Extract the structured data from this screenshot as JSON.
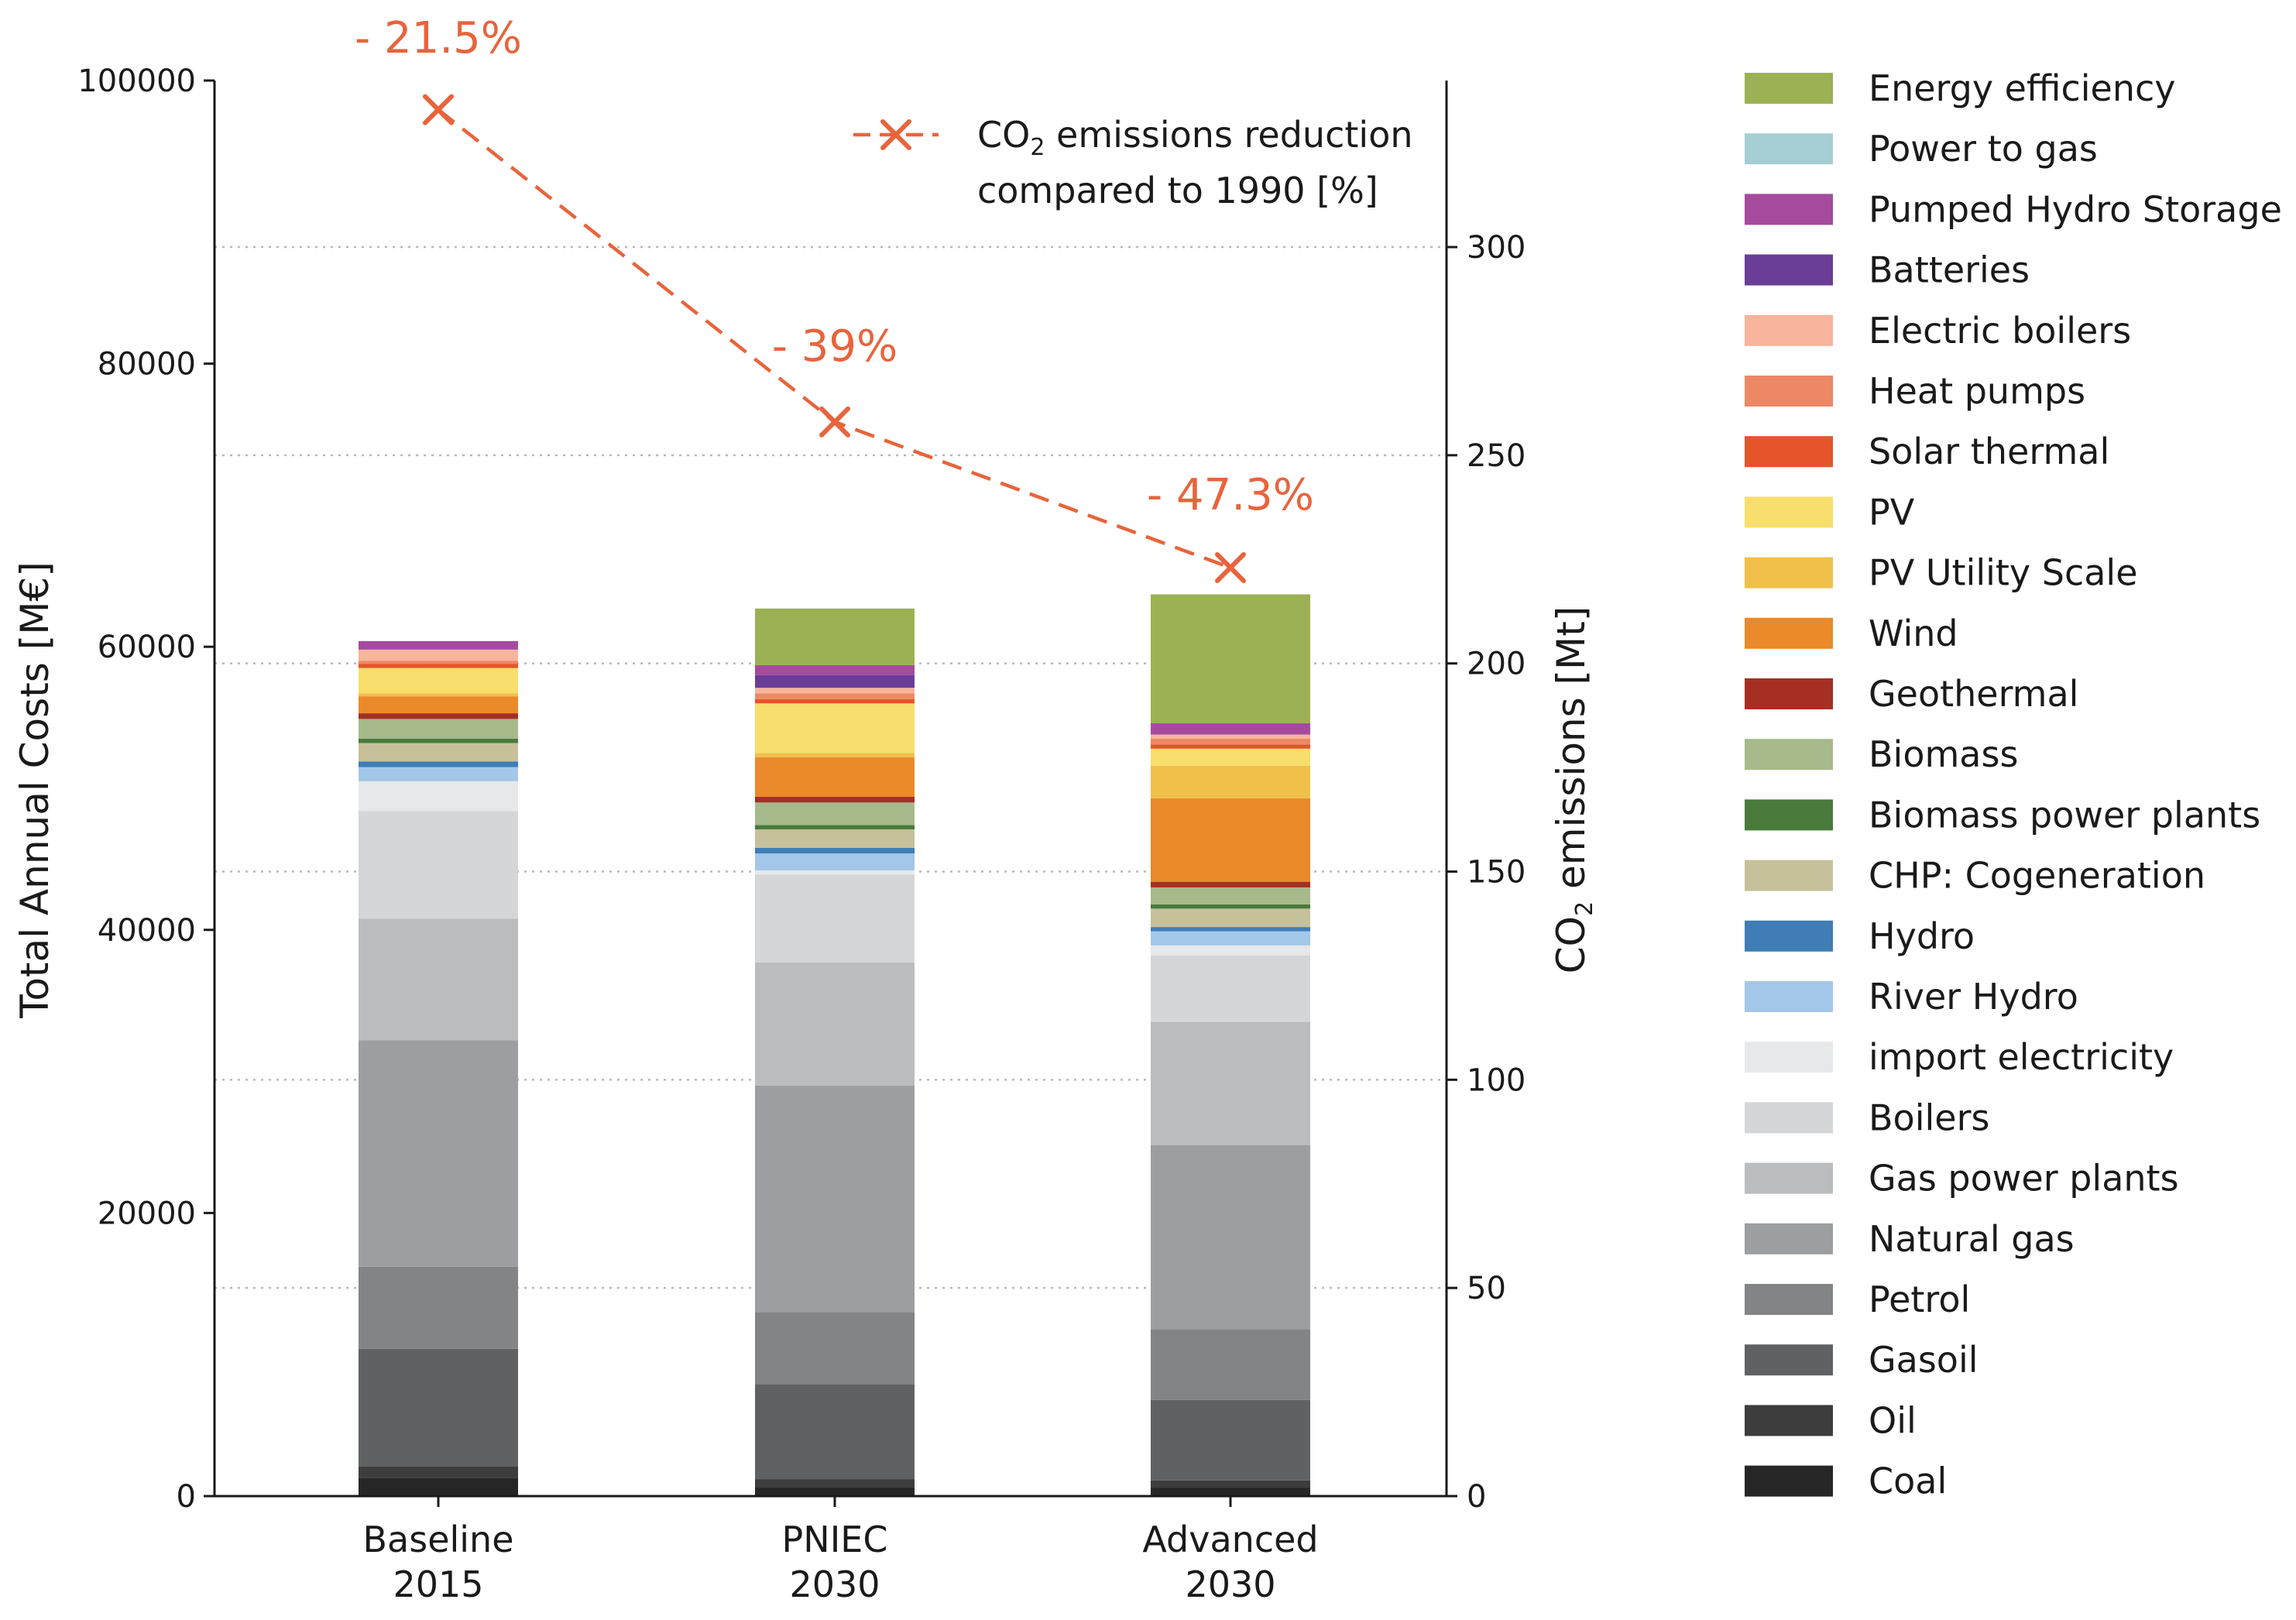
{
  "chart_data": {
    "type": "bar",
    "stacked": true,
    "categories": [
      [
        "Baseline",
        "2015"
      ],
      [
        "PNIEC",
        "2030"
      ],
      [
        "Advanced",
        "2030"
      ]
    ],
    "ylabel": "Total Annual Costs [M€]",
    "ylim": [
      0,
      100000
    ],
    "yticks": [
      0,
      20000,
      40000,
      60000,
      80000,
      100000
    ],
    "y2label": {
      "pre": "CO",
      "sub": "2",
      "post": " emissions [Mt]"
    },
    "y2lim": [
      0,
      340
    ],
    "y2ticks": [
      0,
      50,
      100,
      150,
      200,
      250,
      300
    ],
    "grid": "horizontal dotted (secondary axis)",
    "series": [
      {
        "name": "Coal",
        "color": "#262626",
        "values": [
          1300,
          600,
          600
        ]
      },
      {
        "name": "Oil",
        "color": "#3d3d3d",
        "values": [
          800,
          600,
          500
        ]
      },
      {
        "name": "Gasoil",
        "color": "#606163",
        "values": [
          8300,
          6700,
          5700
        ]
      },
      {
        "name": "Petrol",
        "color": "#838486",
        "values": [
          5800,
          5100,
          5000
        ]
      },
      {
        "name": "Natural gas",
        "color": "#9d9ea1",
        "values": [
          16000,
          16000,
          13000
        ]
      },
      {
        "name": " Gas power plants",
        "color": "#bbbcbe",
        "values": [
          8600,
          8700,
          8700
        ]
      },
      {
        "name": "Boilers",
        "color": "#d5d6d8",
        "values": [
          7600,
          6200,
          4700
        ]
      },
      {
        "name": "import electricity",
        "color": "#e7e8e9",
        "values": [
          2100,
          300,
          700
        ]
      },
      {
        "name": "River Hydro",
        "color": "#a3c7e8",
        "values": [
          1000,
          1200,
          1000
        ]
      },
      {
        "name": "Hydro",
        "color": "#3f7db4",
        "values": [
          400,
          400,
          300
        ]
      },
      {
        "name": "CHP: Cogeneration",
        "color": "#c6c19b",
        "values": [
          1300,
          1300,
          1300
        ]
      },
      {
        "name": "Biomass power plants",
        "color": "#497a3c",
        "values": [
          300,
          300,
          300
        ]
      },
      {
        "name": "Biomass",
        "color": "#a6ba8c",
        "values": [
          1400,
          1600,
          1200
        ]
      },
      {
        "name": "Geothermal",
        "color": "#a52f23",
        "values": [
          400,
          400,
          400
        ]
      },
      {
        "name": "Wind",
        "color": "#ea8a2a",
        "values": [
          1200,
          2800,
          5900
        ]
      },
      {
        "name": "PV Utility Scale",
        "color": "#f0c04a",
        "values": [
          200,
          300,
          2300
        ]
      },
      {
        "name": "PV",
        "color": "#f8de6c",
        "values": [
          1800,
          3500,
          1200
        ]
      },
      {
        "name": "Solar thermal",
        "color": "#e4552a",
        "values": [
          300,
          300,
          300
        ]
      },
      {
        "name": "Heat pumps",
        "color": "#ee8864",
        "values": [
          200,
          400,
          400
        ]
      },
      {
        "name": "Electric boilers",
        "color": "#f8b49c",
        "values": [
          800,
          400,
          300
        ]
      },
      {
        "name": "Batteries",
        "color": "#6a3d96",
        "values": [
          0,
          900,
          0
        ]
      },
      {
        "name": "Pumped Hydro Storage",
        "color": "#a54b9e",
        "values": [
          600,
          700,
          800
        ]
      },
      {
        "name": "Power to gas",
        "color": "#a5cfd2",
        "values": [
          0,
          0,
          0
        ]
      },
      {
        "name": "Energy efficiency",
        "color": "#9bb153",
        "values": [
          0,
          4000,
          9100
        ]
      }
    ],
    "line": {
      "name": {
        "pre": "CO",
        "sub": "2",
        "post": " emissions reduction",
        "line2": "compared to 1990 [%]"
      },
      "axis": "y2",
      "color": "#e8643c",
      "values": [
        333,
        258,
        223
      ],
      "labels": [
        "- 21.5%",
        "- 39%",
        "- 47.3%"
      ]
    },
    "legend": {
      "placement": "right, outside",
      "order": [
        "Energy efficiency",
        "Power to gas",
        "Pumped Hydro Storage",
        "Batteries",
        "Electric boilers",
        "Heat pumps",
        "Solar thermal",
        "PV",
        "PV Utility Scale",
        "Wind",
        "Geothermal",
        "Biomass",
        "Biomass power plants",
        "CHP: Cogeneration",
        "Hydro",
        "River Hydro",
        "import electricity",
        "Boilers",
        " Gas power plants",
        "Natural gas",
        "Petrol",
        "Gasoil",
        "Oil",
        "Coal"
      ]
    }
  }
}
